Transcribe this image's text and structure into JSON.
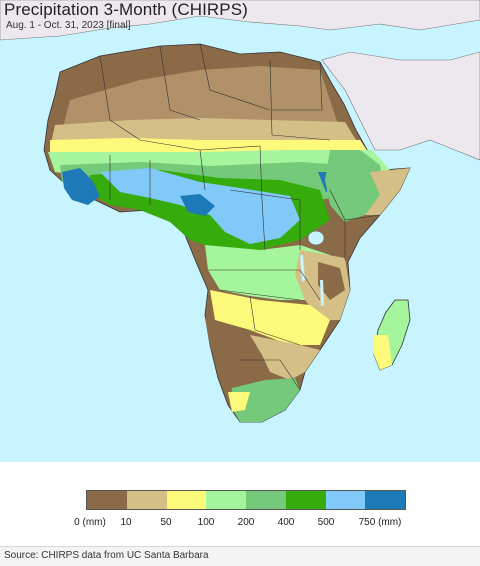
{
  "header": {
    "title": "Precipitation 3-Month (CHIRPS)",
    "subtitle": "Aug. 1 - Oct. 31, 2023 [final]"
  },
  "legend": {
    "items": [
      {
        "label": "0 (mm)",
        "color": "#8b6a48"
      },
      {
        "label": "10",
        "color": "#d4bf86"
      },
      {
        "label": "50",
        "color": "#fdf97b"
      },
      {
        "label": "100",
        "color": "#a4f59b"
      },
      {
        "label": "200",
        "color": "#74c97a"
      },
      {
        "label": "400",
        "color": "#36ab0c"
      },
      {
        "label": "500",
        "color": "#80c9f8"
      },
      {
        "label": "750 (mm)",
        "color": "#1e7ab7"
      }
    ]
  },
  "footer": {
    "source": "Source: CHIRPS data from UC Santa Barbara"
  },
  "map": {
    "ocean_color": "#c8f4ff",
    "outside_region_color": "#ece8ee"
  }
}
